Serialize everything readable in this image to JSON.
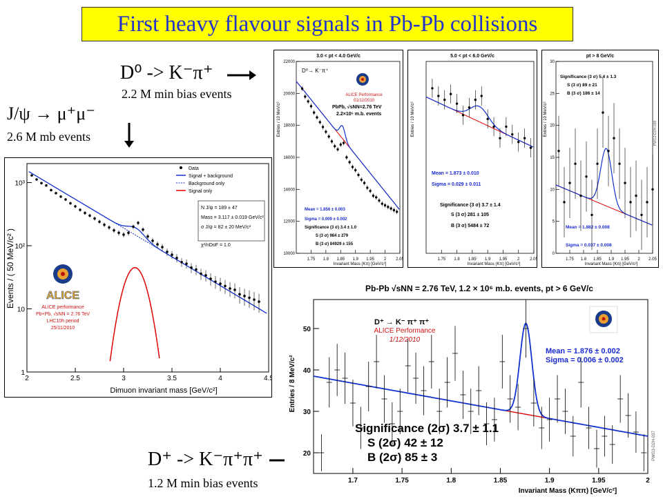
{
  "slide": {
    "title": "First heavy flavour signals in Pb-Pb collisions",
    "accent": "#2233cc",
    "title_bg": "#ffff00"
  },
  "captions": {
    "d0": {
      "decay": "D⁰ -> K⁻π⁺",
      "events": "2.2 M min bias events"
    },
    "jpsi": {
      "decay": "J/ψ → μ⁺μ⁻",
      "events": "2.6 M mb events"
    },
    "dplus": {
      "decay": "D⁺ -> K⁻π⁺π⁺",
      "events": "1.2 M min bias events"
    }
  },
  "charts": {
    "jpsi": {
      "ylabel": "Events / ( 50 MeV/c² )",
      "xlabel": "Dimuon invariant mass [GeV/c²]",
      "legend": [
        "Data",
        "Signal + background",
        "Background only",
        "Signal only"
      ],
      "fit_box": [
        "N J/ψ = 189 ± 47",
        "Mass = 3.117 ± 0.019 GeV/c²",
        "σ J/ψ = 82 ± 20 MeV/c²",
        "χ²/nDoF = 1.0"
      ],
      "alice": [
        "ALICE performance",
        "Pb+Pb, √sNN = 2.76 TeV",
        "LHC10h period",
        "25/11/2010"
      ],
      "logo": "ALICE"
    },
    "d0_a": {
      "title": "3.0 < pt < 4.0 GeV/c",
      "ylabel": "Entries / 10 MeV/c²",
      "xlabel": "Invariant Mass (Kπ) [GeV/c²]",
      "header": "D⁰→ K⁻π⁺",
      "perf": "ALICE Performance",
      "date": "01/12/2010",
      "coll": "PbPb, √sNN=2.76 TeV",
      "events": "2.2×10⁶ m.b. events",
      "mean": "Mean = 1.856 ± 0.003",
      "sigma": "Sigma = 0.009 ± 0.002",
      "stats": [
        "Significance (3 σ) 3.4 ± 1.0",
        "S (3 σ) 984 ± 279",
        "B (3 σ) 84929 ± 155"
      ]
    },
    "d0_b": {
      "title": "5.0 < pt < 6.0 GeV/c",
      "ylabel": "Entries / 10 MeV/c²",
      "xlabel": "Invariant Mass (Kπ) [GeV/c²]",
      "mean": "Mean = 1.873 ± 0.010",
      "sigma": "Sigma = 0.029 ± 0.011",
      "stats": [
        "Significance (3 σ) 3.7 ± 1.4",
        "S (3 σ) 281 ± 105",
        "B (3 σ) 5484 ± 72"
      ]
    },
    "d0_c": {
      "title": "pt > 8 GeV/c",
      "ylabel": "Entries / 10 MeV/c²",
      "xlabel": "Invariant Mass (Kπ) [GeV/c²]",
      "stats": [
        "Significance (3 σ) 5.4 ± 1.3",
        "S (3 σ) 89 ± 21",
        "B (3 σ) 186 ± 14"
      ],
      "mean": "Mean = 1.882 ± 0.008",
      "sigma": "Sigma = 0.037 ± 0.008",
      "tag": "PWG3-D2H-038"
    },
    "dplus": {
      "title": "Pb-Pb √sNN = 2.76 TeV, 1.2 × 10⁶ m.b. events, pt > 6 GeV/c",
      "ylabel": "Entries / 8 MeV/c²",
      "xlabel": "Invariant Mass (Kππ) [GeV/c²]",
      "header": "D⁺ → K⁻ π⁺ π⁺",
      "perf": "ALICE Performance",
      "date": "1/12/2010",
      "mean": "Mean = 1.876 ± 0.002",
      "sigma": "Sigma = 0.006 ± 0.002",
      "stats": [
        "Significance (2σ) 3.7 ± 1.1",
        "S (2σ) 42 ± 12",
        "B (2σ) 85 ± 3"
      ],
      "tag": "PWG3-D2H-037"
    }
  },
  "chart_data": [
    {
      "type": "scatter",
      "name": "jpsi",
      "xlim": [
        2,
        4.5
      ],
      "ylim": [
        1,
        2000
      ],
      "log_y": true,
      "x_ticks": [
        2,
        2.5,
        3,
        3.5,
        4,
        4.5
      ],
      "y_ticks_labels": [
        "1",
        "10",
        "10²",
        "10³"
      ],
      "x": [
        2.05,
        2.1,
        2.15,
        2.2,
        2.25,
        2.3,
        2.35,
        2.4,
        2.45,
        2.5,
        2.55,
        2.6,
        2.65,
        2.7,
        2.75,
        2.8,
        2.85,
        2.9,
        2.95,
        3.0,
        3.05,
        3.1,
        3.15,
        3.2,
        3.25,
        3.3,
        3.35,
        3.4,
        3.45,
        3.5,
        3.55,
        3.6,
        3.65,
        3.7,
        3.75,
        3.8,
        3.85,
        3.9,
        3.95,
        4.0,
        4.05,
        4.1,
        4.15,
        4.2,
        4.25,
        4.3,
        4.35,
        4.4
      ],
      "y": [
        1300,
        1120,
        980,
        900,
        760,
        680,
        600,
        540,
        470,
        420,
        370,
        330,
        300,
        270,
        240,
        215,
        195,
        175,
        160,
        150,
        160,
        200,
        230,
        180,
        140,
        120,
        105,
        95,
        80,
        72,
        64,
        55,
        52,
        45,
        42,
        36,
        34,
        30,
        27,
        25,
        23,
        21,
        20,
        17,
        16,
        15,
        14,
        13
      ],
      "signal_peak": {
        "mean": 3.117,
        "sigma": 0.082,
        "height": 45
      }
    },
    {
      "type": "scatter",
      "name": "d0_a",
      "xlim": [
        1.7,
        2.05
      ],
      "ylim": [
        10000,
        22000
      ],
      "x_ticks": [
        1.75,
        1.8,
        1.85,
        1.9,
        1.95,
        2,
        2.05
      ],
      "y_ticks": [
        10000,
        12000,
        14000,
        16000,
        18000,
        20000,
        22000
      ],
      "x": [
        1.72,
        1.73,
        1.74,
        1.75,
        1.76,
        1.77,
        1.78,
        1.79,
        1.8,
        1.81,
        1.82,
        1.83,
        1.84,
        1.85,
        1.86,
        1.87,
        1.88,
        1.89,
        1.9,
        1.91,
        1.92,
        1.93,
        1.94,
        1.95,
        1.96,
        1.97,
        1.98,
        1.99,
        2.0,
        2.01,
        2.02,
        2.03,
        2.04
      ],
      "y": [
        20300,
        19800,
        19500,
        19200,
        18800,
        18500,
        18200,
        17900,
        17600,
        17300,
        17000,
        16700,
        16500,
        16800,
        16900,
        16000,
        15700,
        15400,
        15200,
        14900,
        14600,
        14400,
        14100,
        13900,
        13600,
        13500,
        13300,
        13100,
        13000,
        12900,
        12800,
        12700,
        12600
      ]
    },
    {
      "type": "scatter",
      "name": "d0_b",
      "xlim": [
        1.7,
        2.05
      ],
      "x_ticks": [
        1.75,
        1.8,
        1.85,
        1.9,
        1.95,
        2,
        2.05
      ],
      "x": [
        1.72,
        1.74,
        1.76,
        1.78,
        1.8,
        1.82,
        1.84,
        1.86,
        1.88,
        1.9,
        1.92,
        1.94,
        1.96,
        1.98,
        2.0,
        2.02,
        2.04
      ],
      "y": [
        0.86,
        0.82,
        0.8,
        0.83,
        0.78,
        0.72,
        0.76,
        0.8,
        0.82,
        0.7,
        0.66,
        0.6,
        0.66,
        0.62,
        0.58,
        0.6,
        0.55
      ]
    },
    {
      "type": "scatter",
      "name": "d0_c",
      "xlim": [
        1.7,
        2.05
      ],
      "ylim": [
        0,
        30
      ],
      "x_ticks": [
        1.75,
        1.8,
        1.85,
        1.9,
        1.95,
        2,
        2.05
      ],
      "y_ticks": [
        0,
        5,
        10,
        15,
        20,
        25,
        30
      ],
      "x": [
        1.71,
        1.73,
        1.75,
        1.77,
        1.79,
        1.81,
        1.83,
        1.85,
        1.87,
        1.89,
        1.91,
        1.93,
        1.95,
        1.97,
        1.99,
        2.01,
        2.03,
        2.05
      ],
      "y": [
        16,
        8,
        11,
        14,
        9,
        12,
        6,
        14,
        22,
        16,
        18,
        14,
        11,
        8,
        9,
        6,
        8,
        10
      ]
    },
    {
      "type": "scatter",
      "name": "dplus",
      "xlim": [
        1.66,
        2.0
      ],
      "ylim": [
        15,
        57
      ],
      "x_ticks": [
        1.7,
        1.75,
        1.8,
        1.85,
        1.9,
        1.95,
        2
      ],
      "y_ticks": [
        20,
        30,
        40,
        50
      ],
      "x": [
        1.668,
        1.676,
        1.684,
        1.692,
        1.7,
        1.708,
        1.716,
        1.724,
        1.732,
        1.74,
        1.748,
        1.756,
        1.764,
        1.772,
        1.78,
        1.788,
        1.796,
        1.804,
        1.812,
        1.82,
        1.828,
        1.836,
        1.844,
        1.852,
        1.86,
        1.868,
        1.876,
        1.884,
        1.892,
        1.9,
        1.908,
        1.916,
        1.924,
        1.932,
        1.94,
        1.948,
        1.956,
        1.964,
        1.972,
        1.98,
        1.988,
        1.996
      ],
      "y": [
        20,
        37,
        40,
        38,
        32,
        26,
        36,
        42,
        33,
        27,
        30,
        41,
        38,
        35,
        42,
        30,
        37,
        44,
        34,
        30,
        35,
        27,
        28,
        42,
        33,
        31,
        50,
        32,
        26,
        28,
        33,
        30,
        24,
        37,
        26,
        21,
        24,
        22,
        33,
        29,
        25,
        20
      ],
      "fit": {
        "bg_start": 38.5,
        "bg_end": 24,
        "peak_mean": 1.876,
        "peak_sigma": 0.006,
        "peak_height": 22
      }
    }
  ]
}
